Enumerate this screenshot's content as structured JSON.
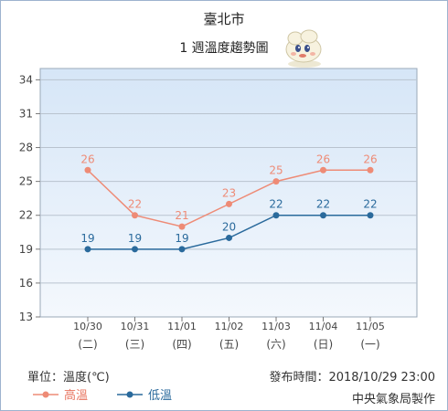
{
  "header": {
    "city": "臺北市",
    "subtitle": "1 週溫度趨勢圖"
  },
  "footer": {
    "unit_label": "單位：溫度(℃)",
    "published_label": "發布時間：2018/10/29 23:00",
    "producer": "中央氣象局製作"
  },
  "colors": {
    "high": "#ee8b76",
    "low": "#2a6a9c",
    "plot_top": "#d6e6f7",
    "plot_bottom": "#f4f8fd"
  },
  "mascot_icon": "cloud-mascot-icon",
  "chart_data": {
    "type": "line",
    "categories": [
      "10/30",
      "10/31",
      "11/01",
      "11/02",
      "11/03",
      "11/04",
      "11/05"
    ],
    "weekdays": [
      "(二)",
      "(三)",
      "(四)",
      "(五)",
      "(六)",
      "(日)",
      "(一)"
    ],
    "series": [
      {
        "name": "高溫",
        "values": [
          26,
          22,
          21,
          23,
          25,
          26,
          26
        ]
      },
      {
        "name": "低溫",
        "values": [
          19,
          19,
          19,
          20,
          22,
          22,
          22
        ]
      }
    ],
    "yticks": [
      13,
      16,
      19,
      22,
      25,
      28,
      31,
      34
    ],
    "ylim": [
      13,
      35
    ],
    "grid": true,
    "legend_position": "bottom-left"
  }
}
